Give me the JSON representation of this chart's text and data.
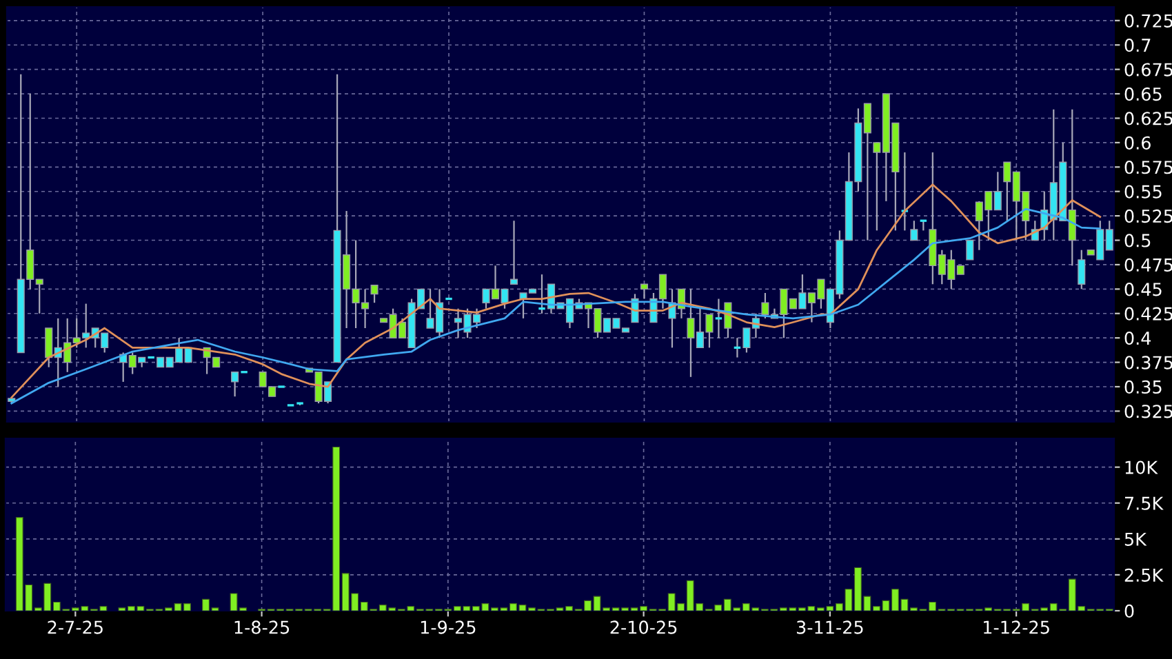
{
  "chart_data": [
    {
      "type": "candlestick",
      "categories": [
        null,
        null,
        null,
        null,
        null,
        null,
        null,
        null,
        null,
        null,
        null,
        null,
        null,
        null,
        null,
        null,
        null,
        null,
        null,
        null,
        null,
        null,
        null,
        null,
        null,
        null,
        null,
        null,
        null,
        null,
        null,
        null,
        null,
        null,
        null,
        null,
        null,
        null,
        null,
        null,
        null,
        null,
        null,
        null,
        null,
        null,
        null,
        null,
        null,
        null,
        null,
        null,
        null,
        null,
        null,
        null,
        null,
        null,
        null,
        null,
        null,
        null,
        null,
        null,
        null,
        null,
        null,
        null,
        null,
        null,
        null,
        null,
        null,
        null,
        null,
        null,
        null,
        null,
        null,
        null,
        null,
        null,
        null,
        null,
        null,
        null,
        null,
        null,
        null,
        null,
        null,
        null,
        null,
        null,
        null,
        null,
        null,
        null,
        null,
        null,
        null,
        null,
        null,
        null,
        null,
        null,
        null,
        null,
        null,
        null,
        null,
        null,
        null,
        null,
        null,
        null,
        null,
        null,
        null
      ],
      "ohlc": [
        [
          0.335,
          0.338,
          0.333,
          0.338
        ],
        [
          0.385,
          0.67,
          0.385,
          0.46
        ],
        [
          0.49,
          0.65,
          0.45,
          0.46
        ],
        [
          0.46,
          0.46,
          0.425,
          0.455
        ],
        [
          0.41,
          0.41,
          0.37,
          0.38
        ],
        [
          0.38,
          0.42,
          0.35,
          0.39
        ],
        [
          0.395,
          0.42,
          0.365,
          0.375
        ],
        [
          0.4,
          0.42,
          0.39,
          0.395
        ],
        [
          0.4,
          0.435,
          0.39,
          0.405
        ],
        [
          0.4,
          0.41,
          0.39,
          0.41
        ],
        [
          0.39,
          0.405,
          0.385,
          0.405
        ],
        null,
        [
          0.375,
          0.385,
          0.355,
          0.383
        ],
        [
          0.382,
          0.385,
          0.363,
          0.37
        ],
        [
          0.375,
          0.38,
          0.37,
          0.38
        ],
        [
          0.38,
          0.38,
          0.38,
          0.38
        ],
        [
          0.37,
          0.38,
          0.37,
          0.38
        ],
        [
          0.37,
          0.38,
          0.37,
          0.38
        ],
        [
          0.375,
          0.4,
          0.375,
          0.39
        ],
        [
          0.375,
          0.39,
          0.375,
          0.39
        ],
        null,
        [
          0.39,
          0.39,
          0.363,
          0.38
        ],
        [
          0.38,
          0.38,
          0.37,
          0.37
        ],
        null,
        [
          0.355,
          0.365,
          0.34,
          0.365
        ],
        [
          0.365,
          0.365,
          0.365,
          0.365
        ],
        null,
        [
          0.365,
          0.365,
          0.35,
          0.35
        ],
        [
          0.35,
          0.35,
          0.34,
          0.34
        ],
        [
          0.35,
          0.35,
          0.35,
          0.35
        ],
        [
          0.331,
          0.331,
          0.331,
          0.331
        ],
        [
          0.333,
          0.333,
          0.331,
          0.333
        ],
        [
          0.369,
          0.369,
          0.365,
          0.365
        ],
        [
          0.365,
          0.365,
          0.333,
          0.335
        ],
        [
          0.335,
          0.355,
          0.333,
          0.355
        ],
        [
          0.375,
          0.67,
          0.375,
          0.51
        ],
        [
          0.485,
          0.53,
          0.41,
          0.45
        ],
        [
          0.45,
          0.5,
          0.41,
          0.436
        ],
        [
          0.436,
          0.45,
          0.41,
          0.43
        ],
        [
          0.454,
          0.454,
          0.436,
          0.445
        ],
        [
          0.42,
          0.42,
          0.416,
          0.416
        ],
        [
          0.424,
          0.43,
          0.4,
          0.4
        ],
        [
          0.416,
          0.42,
          0.4,
          0.4
        ],
        [
          0.39,
          0.44,
          0.39,
          0.436
        ],
        [
          0.43,
          0.45,
          0.43,
          0.45
        ],
        [
          0.41,
          0.45,
          0.41,
          0.42
        ],
        [
          0.406,
          0.45,
          0.4,
          0.436
        ],
        [
          0.44,
          0.44,
          0.44,
          0.44
        ],
        [
          0.416,
          0.43,
          0.4,
          0.42
        ],
        [
          0.406,
          0.43,
          0.4,
          0.424
        ],
        [
          0.416,
          0.43,
          0.41,
          0.424
        ],
        [
          0.436,
          0.45,
          0.43,
          0.45
        ],
        [
          0.45,
          0.474,
          0.44,
          0.44
        ],
        [
          0.436,
          0.45,
          0.43,
          0.45
        ],
        [
          0.455,
          0.52,
          0.455,
          0.46
        ],
        [
          0.44,
          0.446,
          0.42,
          0.446
        ],
        [
          0.446,
          0.45,
          0.446,
          0.45
        ],
        [
          0.43,
          0.465,
          0.425,
          0.43
        ],
        [
          0.43,
          0.455,
          0.425,
          0.455
        ],
        [
          0.43,
          0.436,
          0.43,
          0.436
        ],
        [
          0.416,
          0.44,
          0.41,
          0.44
        ],
        [
          0.43,
          0.44,
          0.43,
          0.436
        ],
        [
          0.436,
          0.436,
          0.41,
          0.43
        ],
        [
          0.43,
          0.43,
          0.4,
          0.406
        ],
        [
          0.406,
          0.42,
          0.406,
          0.42
        ],
        [
          0.41,
          0.42,
          0.41,
          0.42
        ],
        [
          0.406,
          0.41,
          0.406,
          0.41
        ],
        [
          0.416,
          0.445,
          0.416,
          0.44
        ],
        [
          0.455,
          0.455,
          0.44,
          0.45
        ],
        [
          0.416,
          0.446,
          0.416,
          0.44
        ],
        [
          0.465,
          0.465,
          0.43,
          0.44
        ],
        [
          0.42,
          0.45,
          0.39,
          0.436
        ],
        [
          0.45,
          0.45,
          0.42,
          0.43
        ],
        [
          0.42,
          0.45,
          0.36,
          0.4
        ],
        [
          0.39,
          0.43,
          0.39,
          0.406
        ],
        [
          0.424,
          0.424,
          0.39,
          0.406
        ],
        [
          0.42,
          0.44,
          0.4,
          0.42
        ],
        [
          0.436,
          0.436,
          0.4,
          0.41
        ],
        [
          0.39,
          0.4,
          0.38,
          0.39
        ],
        [
          0.39,
          0.41,
          0.385,
          0.41
        ],
        [
          0.41,
          0.425,
          0.4,
          0.42
        ],
        [
          0.436,
          0.446,
          0.42,
          0.424
        ],
        [
          0.42,
          0.43,
          0.42,
          0.424
        ],
        [
          0.45,
          0.45,
          0.4,
          0.424
        ],
        [
          0.44,
          0.44,
          0.43,
          0.43
        ],
        [
          0.43,
          0.465,
          0.43,
          0.446
        ],
        [
          0.446,
          0.446,
          0.416,
          0.436
        ],
        [
          0.46,
          0.46,
          0.43,
          0.44
        ],
        [
          0.416,
          0.45,
          0.41,
          0.45
        ],
        [
          0.445,
          0.51,
          0.44,
          0.5
        ],
        [
          0.5,
          0.59,
          0.5,
          0.56
        ],
        [
          0.56,
          0.635,
          0.55,
          0.62
        ],
        [
          0.64,
          0.64,
          0.5,
          0.61
        ],
        [
          0.6,
          0.6,
          0.51,
          0.59
        ],
        [
          0.65,
          0.65,
          0.54,
          0.59
        ],
        [
          0.62,
          0.62,
          0.51,
          0.57
        ],
        [
          0.53,
          0.59,
          0.51,
          0.53
        ],
        [
          0.5,
          0.52,
          0.5,
          0.511
        ],
        [
          0.52,
          0.52,
          0.51,
          0.52
        ],
        [
          0.511,
          0.59,
          0.455,
          0.474
        ],
        [
          0.485,
          0.49,
          0.455,
          0.465
        ],
        [
          0.48,
          0.49,
          0.45,
          0.46
        ],
        [
          0.474,
          0.474,
          0.465,
          0.465
        ],
        [
          0.48,
          0.5,
          0.48,
          0.5
        ],
        [
          0.539,
          0.54,
          0.49,
          0.52
        ],
        [
          0.55,
          0.55,
          0.5,
          0.531
        ],
        [
          0.531,
          0.57,
          0.531,
          0.55
        ],
        [
          0.58,
          0.58,
          0.52,
          0.56
        ],
        [
          0.57,
          0.57,
          0.5,
          0.54
        ],
        [
          0.55,
          0.55,
          0.5,
          0.52
        ],
        [
          0.5,
          0.52,
          0.5,
          0.511
        ],
        [
          0.511,
          0.55,
          0.5,
          0.531
        ],
        [
          0.521,
          0.634,
          0.5,
          0.559
        ],
        [
          0.52,
          0.6,
          0.52,
          0.58
        ],
        [
          0.531,
          0.634,
          0.474,
          0.5
        ],
        [
          0.455,
          0.49,
          0.45,
          0.48
        ],
        [
          0.49,
          0.49,
          0.485,
          0.485
        ],
        [
          0.48,
          0.52,
          0.48,
          0.511
        ],
        [
          0.49,
          0.52,
          0.49,
          0.511
        ]
      ],
      "colors": [
        "#33e4f2",
        "#33e4f2",
        "#80ee22",
        "#80ee22",
        "#80ee22",
        "#33e4f2",
        "#80ee22",
        "#80ee22",
        "#33e4f2",
        "#33e4f2",
        "#33e4f2",
        null,
        "#33e4f2",
        "#80ee22",
        "#33e4f2",
        "#33e4f2",
        "#33e4f2",
        "#33e4f2",
        "#33e4f2",
        "#33e4f2",
        null,
        "#80ee22",
        "#80ee22",
        null,
        "#33e4f2",
        "#33e4f2",
        null,
        "#80ee22",
        "#80ee22",
        "#33e4f2",
        "#33e4f2",
        "#33e4f2",
        "#80ee22",
        "#80ee22",
        "#33e4f2",
        "#33e4f2",
        "#80ee22",
        "#80ee22",
        "#80ee22",
        "#80ee22",
        "#80ee22",
        "#80ee22",
        "#80ee22",
        "#33e4f2",
        "#33e4f2",
        "#33e4f2",
        "#33e4f2",
        "#33e4f2",
        "#33e4f2",
        "#33e4f2",
        "#33e4f2",
        "#33e4f2",
        "#80ee22",
        "#33e4f2",
        "#33e4f2",
        "#33e4f2",
        "#33e4f2",
        "#33e4f2",
        "#33e4f2",
        "#33e4f2",
        "#33e4f2",
        "#33e4f2",
        "#80ee22",
        "#80ee22",
        "#33e4f2",
        "#33e4f2",
        "#33e4f2",
        "#33e4f2",
        "#80ee22",
        "#33e4f2",
        "#80ee22",
        "#33e4f2",
        "#80ee22",
        "#80ee22",
        "#33e4f2",
        "#80ee22",
        "#33e4f2",
        "#80ee22",
        "#33e4f2",
        "#33e4f2",
        "#33e4f2",
        "#80ee22",
        "#33e4f2",
        "#80ee22",
        "#80ee22",
        "#33e4f2",
        "#80ee22",
        "#80ee22",
        "#33e4f2",
        "#33e4f2",
        "#33e4f2",
        "#33e4f2",
        "#80ee22",
        "#80ee22",
        "#80ee22",
        "#80ee22",
        "#33e4f2",
        "#33e4f2",
        "#33e4f2",
        "#80ee22",
        "#80ee22",
        "#80ee22",
        "#80ee22",
        "#33e4f2",
        "#80ee22",
        "#80ee22",
        "#33e4f2",
        "#80ee22",
        "#80ee22",
        "#80ee22",
        "#33e4f2",
        "#33e4f2",
        "#33e4f2",
        "#33e4f2",
        "#80ee22",
        "#33e4f2",
        "#80ee22",
        "#33e4f2",
        "#33e4f2"
      ],
      "series": [
        {
          "type": "line",
          "color": "#e0905a",
          "values": [
            0.339,
            null,
            null,
            null,
            0.38,
            null,
            null,
            null,
            0.398,
            null,
            0.41,
            null,
            null,
            0.39,
            null,
            null,
            null,
            null,
            null,
            0.39,
            null,
            null,
            null,
            null,
            0.383,
            null,
            null,
            0.373,
            null,
            0.363,
            null,
            null,
            0.353,
            null,
            0.35,
            null,
            0.378,
            null,
            0.395,
            null,
            null,
            0.41,
            null,
            0.425,
            null,
            0.44,
            0.43,
            null,
            null,
            null,
            0.426,
            null,
            null,
            0.435,
            null,
            0.44,
            null,
            0.44,
            null,
            null,
            0.445,
            null,
            0.446,
            null,
            null,
            0.436,
            null,
            0.428,
            null,
            null,
            0.428,
            null,
            0.436,
            null,
            null,
            0.43,
            null,
            0.424,
            null,
            0.416,
            null,
            null,
            0.411,
            null,
            0.416,
            null,
            null,
            0.424,
            0.424,
            null,
            null,
            0.45,
            null,
            0.49,
            null,
            null,
            0.53,
            null,
            null,
            0.557,
            null,
            0.54,
            null,
            null,
            0.508,
            null,
            0.497,
            null,
            null,
            0.504,
            null,
            0.513,
            null,
            null,
            0.541,
            null,
            null,
            0.524,
            null
          ]
        },
        {
          "type": "line",
          "color": "#40a8f0",
          "values": [
            0.333,
            null,
            null,
            null,
            0.354,
            null,
            null,
            null,
            0.368,
            null,
            null,
            null,
            null,
            0.386,
            null,
            null,
            null,
            null,
            null,
            null,
            0.398,
            null,
            null,
            null,
            0.386,
            null,
            null,
            0.38,
            null,
            null,
            0.373,
            null,
            0.368,
            null,
            null,
            0.366,
            0.378,
            null,
            null,
            null,
            0.383,
            null,
            null,
            0.386,
            null,
            0.398,
            null,
            null,
            0.408,
            null,
            null,
            null,
            null,
            0.42,
            null,
            0.437,
            null,
            null,
            0.434,
            null,
            0.434,
            null,
            null,
            null,
            null,
            null,
            0.437,
            null,
            null,
            null,
            0.437,
            null,
            null,
            0.432,
            null,
            null,
            null,
            null,
            null,
            0.424,
            null,
            null,
            null,
            null,
            0.42,
            null,
            null,
            null,
            0.424,
            null,
            null,
            0.434,
            null,
            null,
            0.457,
            null,
            null,
            0.48,
            null,
            0.497,
            null,
            null,
            null,
            0.502,
            null,
            null,
            0.513,
            null,
            null,
            0.532,
            null,
            null,
            null,
            0.523,
            null,
            0.513,
            null,
            0.512,
            null
          ]
        }
      ],
      "ylim": [
        0.314,
        0.739
      ],
      "yticks": [
        0.325,
        0.35,
        0.375,
        0.4,
        0.425,
        0.45,
        0.475,
        0.5,
        0.525,
        0.55,
        0.575,
        0.6,
        0.625,
        0.65,
        0.675,
        0.7,
        0.725
      ],
      "grid": true,
      "tick_labels": "y"
    },
    {
      "type": "bar",
      "categories": [
        null,
        null,
        null,
        null,
        null,
        null,
        null,
        "2-7-25",
        null,
        null,
        null,
        null,
        null,
        null,
        null,
        null,
        null,
        null,
        null,
        null,
        null,
        null,
        null,
        null,
        null,
        null,
        null,
        "1-8-25",
        null,
        null,
        null,
        null,
        null,
        null,
        null,
        null,
        null,
        null,
        null,
        null,
        null,
        null,
        null,
        null,
        null,
        null,
        null,
        "1-9-25",
        null,
        null,
        null,
        null,
        null,
        null,
        null,
        null,
        null,
        null,
        null,
        null,
        null,
        null,
        null,
        null,
        null,
        null,
        null,
        null,
        "2-10-25",
        null,
        null,
        null,
        null,
        null,
        null,
        null,
        null,
        null,
        null,
        null,
        null,
        null,
        null,
        null,
        null,
        null,
        null,
        null,
        "3-11-25",
        null,
        null,
        null,
        null,
        null,
        null,
        null,
        null,
        null,
        null,
        null,
        null,
        null,
        null,
        null,
        null,
        null,
        null,
        null,
        "1-12-25",
        null,
        null,
        null,
        null,
        null,
        null,
        null,
        null,
        null,
        null
      ],
      "values": [
        null,
        6.5,
        1.8,
        0.2,
        1.9,
        0.6,
        0.1,
        0.2,
        0.3,
        0.1,
        0.3,
        null,
        0.2,
        0.3,
        0.3,
        0.1,
        0.1,
        0.2,
        0.5,
        0.5,
        null,
        0.8,
        0.2,
        null,
        1.2,
        0.2,
        null,
        0.1,
        0.1,
        0.1,
        0.1,
        0.1,
        0.1,
        0.1,
        0.1,
        11.4,
        2.6,
        1.2,
        0.6,
        0.1,
        0.4,
        0.2,
        0.1,
        0.3,
        0.1,
        0.1,
        0.1,
        0.1,
        0.3,
        0.3,
        0.3,
        0.5,
        0.2,
        0.2,
        0.5,
        0.4,
        0.2,
        0.1,
        0.1,
        0.2,
        0.3,
        0.1,
        0.7,
        1.0,
        0.2,
        0.2,
        0.2,
        0.2,
        0.3,
        0.1,
        0.1,
        1.2,
        0.5,
        2.1,
        0.5,
        0.1,
        0.4,
        0.8,
        0.2,
        0.5,
        0.2,
        0.1,
        0.1,
        0.2,
        0.2,
        0.2,
        0.3,
        0.2,
        0.3,
        0.5,
        1.5,
        3.0,
        1.0,
        0.3,
        0.7,
        1.5,
        0.8,
        0.2,
        0.1,
        0.6,
        0.1,
        0.1,
        0.1,
        0.1,
        0.1,
        0.2,
        0.1,
        0.1,
        0.1,
        0.5,
        0.1,
        0.2,
        0.5,
        0.1,
        2.2,
        0.3,
        0.1,
        0.1,
        0.1
      ],
      "color": "#80ee22",
      "ylim": [
        0,
        12
      ],
      "yticks": [
        {
          "value": 0,
          "label": "0"
        },
        {
          "value": 2.5,
          "label": "2.5K"
        },
        {
          "value": 5,
          "label": "5K"
        },
        {
          "value": 7.5,
          "label": "7.5K"
        },
        {
          "value": 10,
          "label": "10K"
        }
      ],
      "grid": true
    }
  ]
}
